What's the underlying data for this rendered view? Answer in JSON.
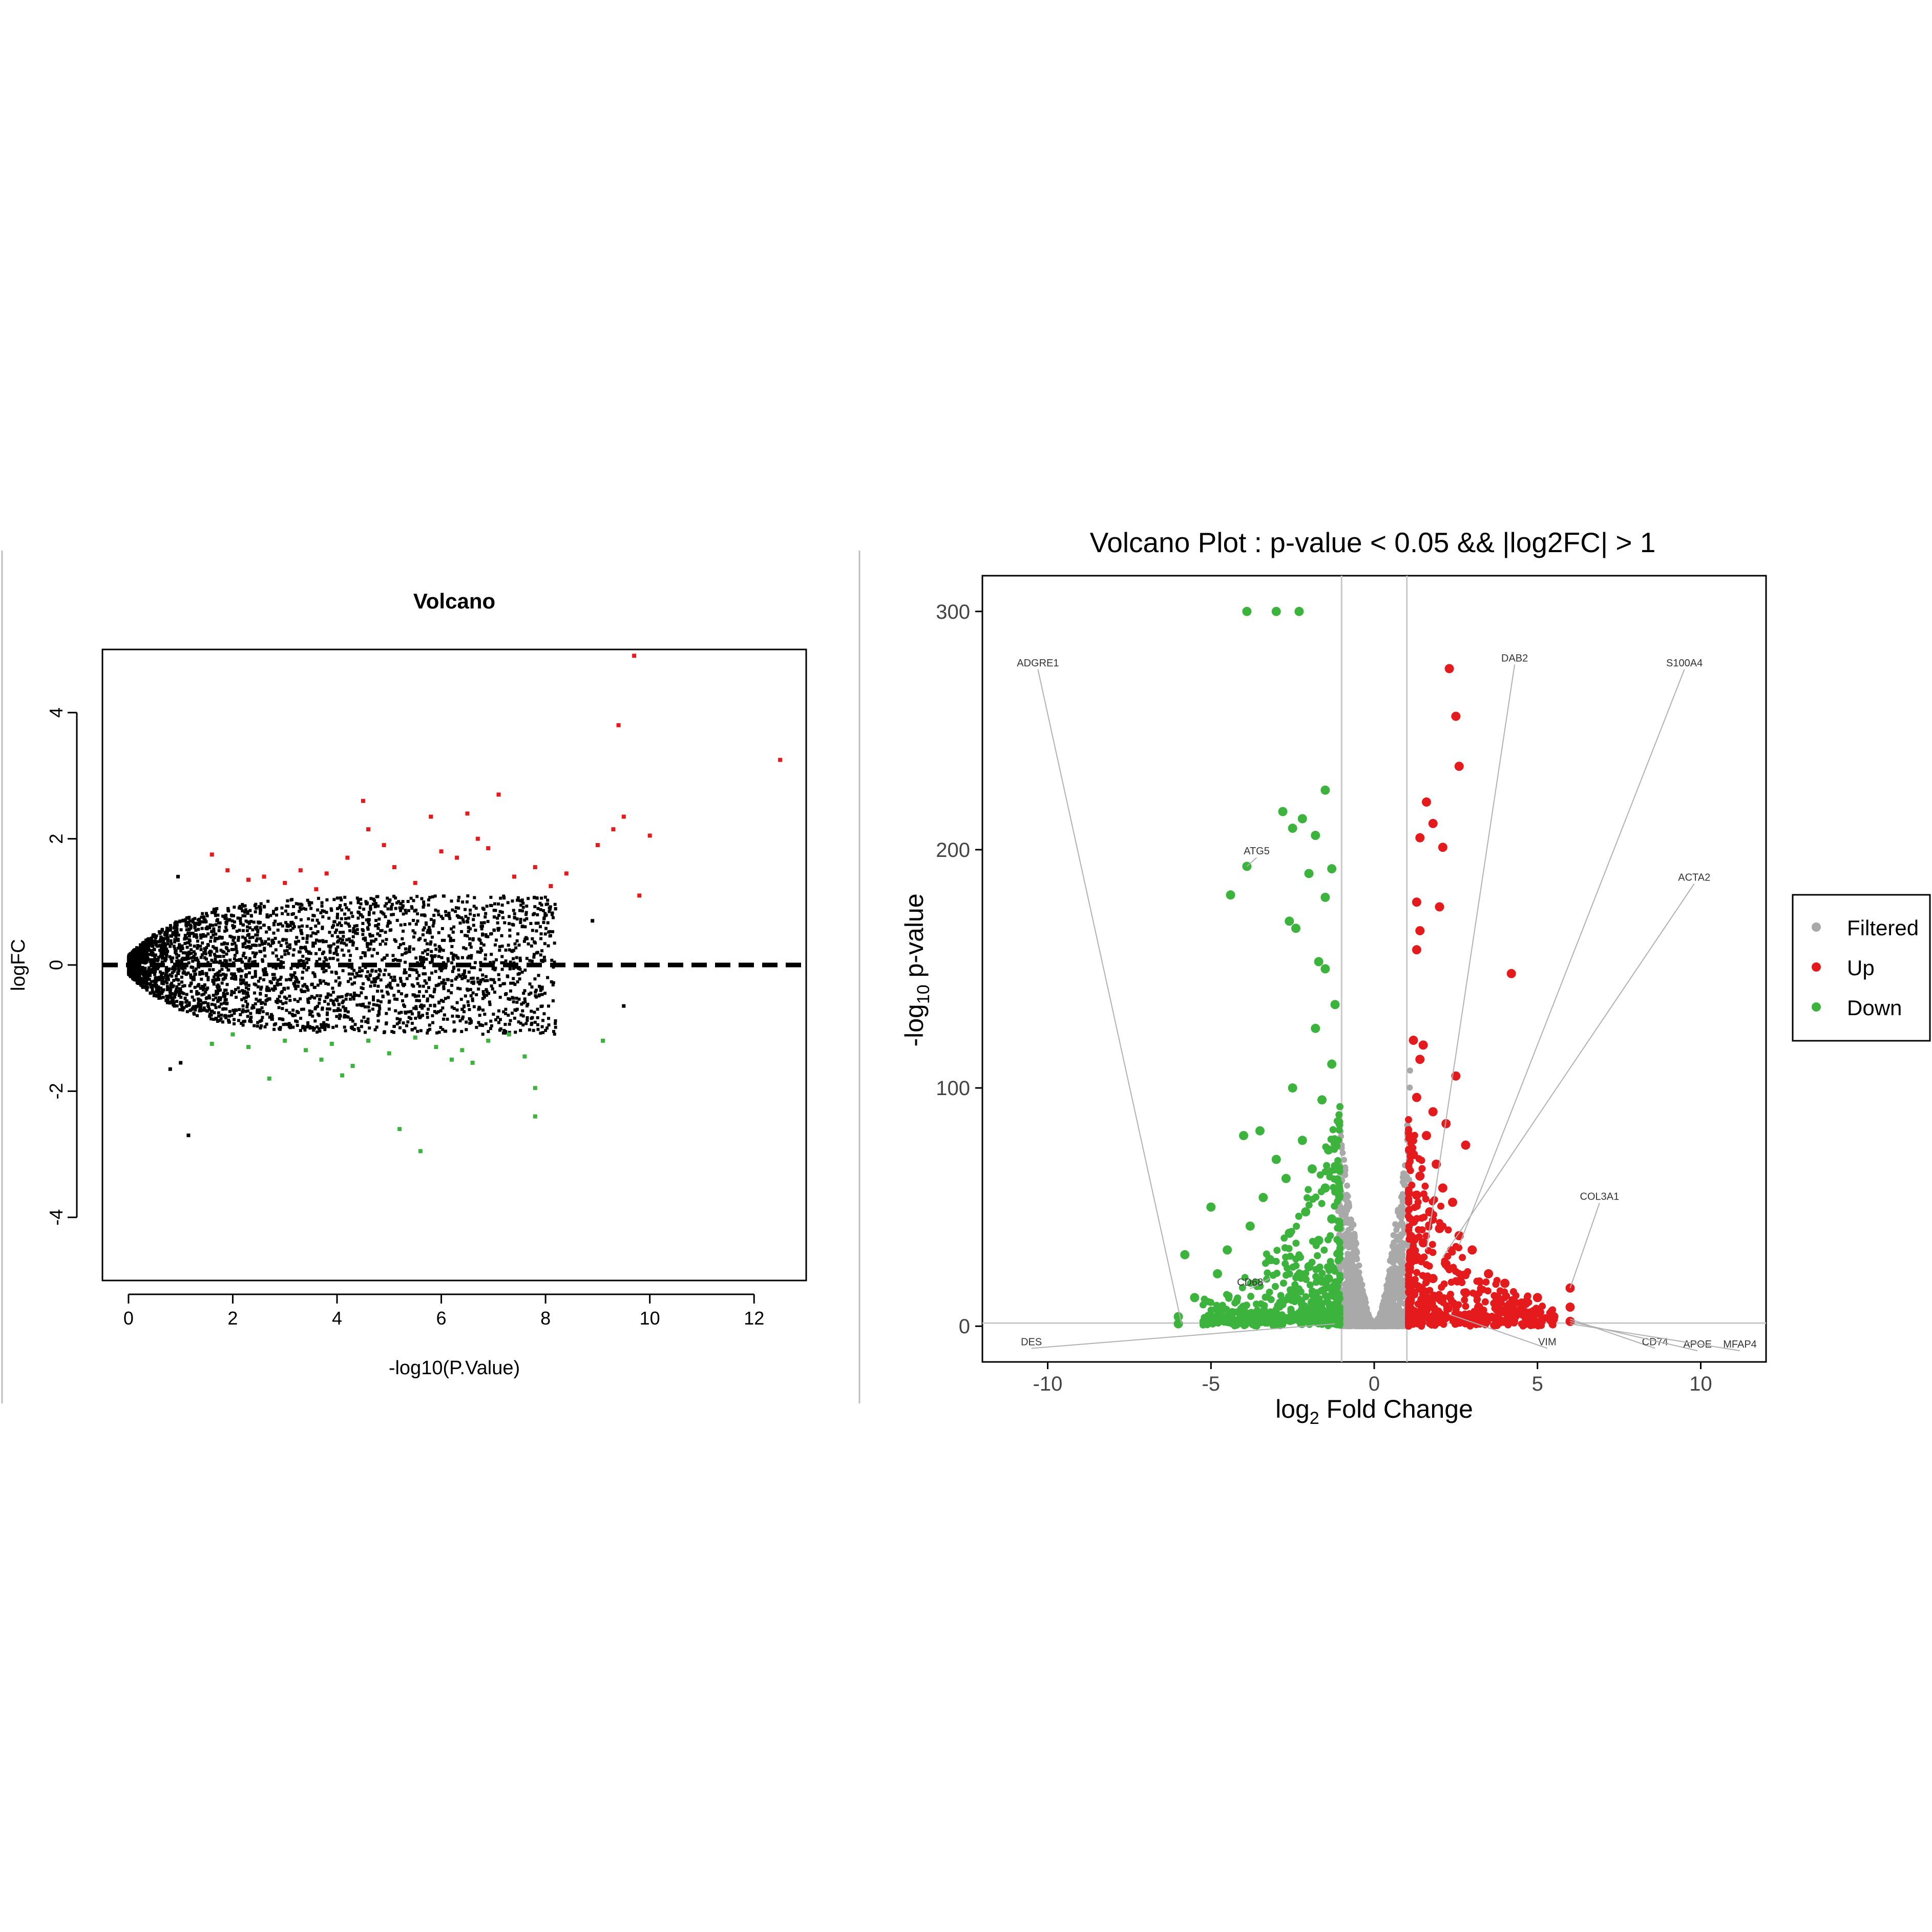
{
  "colors": {
    "black": "#000000",
    "up": "#e41a1c",
    "down": "#3cb33c",
    "filtered": "#a9a9a9",
    "guide_line": "#c8c8c8",
    "panel_divider": "#bdbdbd"
  },
  "chart_data": [
    {
      "type": "scatter",
      "title": "Volcano",
      "xlabel": "-log10(P.Value)",
      "ylabel": "logFC",
      "xlim": [
        -0.5,
        13
      ],
      "ylim": [
        -5,
        5
      ],
      "x_ticks": [
        0,
        2,
        4,
        6,
        8,
        10,
        12
      ],
      "y_ticks": [
        -4,
        -2,
        0,
        2,
        4
      ],
      "grid": false,
      "reference_line": {
        "y": 0,
        "style": "dashed"
      },
      "series": [
        {
          "color_key": "up",
          "points": [
            [
              1.6,
              1.75
            ],
            [
              1.9,
              1.5
            ],
            [
              2.3,
              1.35
            ],
            [
              2.6,
              1.4
            ],
            [
              3.0,
              1.3
            ],
            [
              3.3,
              1.5
            ],
            [
              3.6,
              1.2
            ],
            [
              3.8,
              1.45
            ],
            [
              4.2,
              1.7
            ],
            [
              4.5,
              2.6
            ],
            [
              4.6,
              2.15
            ],
            [
              4.9,
              1.9
            ],
            [
              5.1,
              1.55
            ],
            [
              5.5,
              1.3
            ],
            [
              5.8,
              2.35
            ],
            [
              6.0,
              1.8
            ],
            [
              6.3,
              1.7
            ],
            [
              6.5,
              2.4
            ],
            [
              6.7,
              2.0
            ],
            [
              6.9,
              1.85
            ],
            [
              7.1,
              2.7
            ],
            [
              7.4,
              1.4
            ],
            [
              7.8,
              1.55
            ],
            [
              8.1,
              1.25
            ],
            [
              8.4,
              1.45
            ],
            [
              9.0,
              1.9
            ],
            [
              9.3,
              2.15
            ],
            [
              9.4,
              3.8
            ],
            [
              9.5,
              2.35
            ],
            [
              9.7,
              4.9
            ],
            [
              9.8,
              1.1
            ],
            [
              10.0,
              2.05
            ],
            [
              12.5,
              3.25
            ]
          ]
        },
        {
          "color_key": "down",
          "points": [
            [
              1.6,
              -1.25
            ],
            [
              2.0,
              -1.1
            ],
            [
              2.3,
              -1.3
            ],
            [
              2.7,
              -1.8
            ],
            [
              3.0,
              -1.2
            ],
            [
              3.4,
              -1.35
            ],
            [
              3.7,
              -1.5
            ],
            [
              3.9,
              -1.25
            ],
            [
              4.1,
              -1.75
            ],
            [
              4.3,
              -1.6
            ],
            [
              4.6,
              -1.2
            ],
            [
              5.0,
              -1.4
            ],
            [
              5.2,
              -2.6
            ],
            [
              5.5,
              -1.15
            ],
            [
              5.6,
              -2.95
            ],
            [
              5.9,
              -1.3
            ],
            [
              6.2,
              -1.5
            ],
            [
              6.4,
              -1.35
            ],
            [
              6.6,
              -1.55
            ],
            [
              6.9,
              -1.2
            ],
            [
              7.3,
              -1.1
            ],
            [
              7.6,
              -1.45
            ],
            [
              7.8,
              -1.95
            ],
            [
              7.8,
              -2.4
            ],
            [
              9.1,
              -1.2
            ]
          ]
        }
      ],
      "outliers_nonsignificant": [
        [
          0.95,
          1.4
        ],
        [
          1.0,
          -1.55
        ],
        [
          1.15,
          -2.7
        ],
        [
          0.8,
          -1.65
        ],
        [
          9.5,
          -0.65
        ],
        [
          8.9,
          0.7
        ]
      ]
    },
    {
      "type": "scatter",
      "title": "Volcano Plot : p-value < 0.05 && |log2FC| > 1",
      "xlabel": "log2 Fold Change",
      "ylabel": "-log10 p-value",
      "xlim": [
        -12,
        12
      ],
      "ylim": [
        -15,
        315
      ],
      "x_ticks": [
        -10,
        -5,
        0,
        5,
        10
      ],
      "y_ticks": [
        0,
        100,
        200,
        300
      ],
      "grid": false,
      "reference_lines": {
        "x": [
          -1,
          1
        ],
        "y": [
          1.3
        ]
      },
      "legend": {
        "position": "right",
        "entries": [
          {
            "label": "Filtered",
            "color_key": "filtered"
          },
          {
            "label": "Up",
            "color_key": "up"
          },
          {
            "label": "Down",
            "color_key": "down"
          }
        ]
      },
      "series": [
        {
          "name": "Up",
          "color_key": "up",
          "points": [
            [
              2.3,
              276
            ],
            [
              2.5,
              256
            ],
            [
              2.6,
              235
            ],
            [
              1.6,
              220
            ],
            [
              1.8,
              211
            ],
            [
              1.4,
              205
            ],
            [
              2.1,
              201
            ],
            [
              1.3,
              178
            ],
            [
              2.0,
              176
            ],
            [
              1.4,
              166
            ],
            [
              1.3,
              158
            ],
            [
              4.2,
              148
            ],
            [
              1.2,
              120
            ],
            [
              1.5,
              118
            ],
            [
              1.4,
              112
            ],
            [
              2.5,
              105
            ],
            [
              1.3,
              96
            ],
            [
              1.8,
              90
            ],
            [
              2.2,
              85
            ],
            [
              1.6,
              80
            ],
            [
              2.8,
              76
            ],
            [
              1.2,
              72
            ],
            [
              1.9,
              68
            ],
            [
              1.4,
              63
            ],
            [
              2.1,
              58
            ],
            [
              1.3,
              55
            ],
            [
              2.4,
              52
            ],
            [
              1.7,
              48
            ],
            [
              1.2,
              44
            ],
            [
              2.0,
              41
            ],
            [
              2.6,
              38
            ],
            [
              1.5,
              35
            ],
            [
              3.0,
              32
            ],
            [
              1.3,
              29
            ],
            [
              2.2,
              26
            ],
            [
              3.5,
              22
            ],
            [
              1.8,
              20
            ],
            [
              4.0,
              18
            ],
            [
              1.4,
              16
            ],
            [
              2.8,
              14
            ],
            [
              5.0,
              12
            ],
            [
              1.6,
              10
            ],
            [
              3.2,
              8
            ],
            [
              4.5,
              7
            ],
            [
              6.0,
              16
            ],
            [
              6.0,
              8
            ],
            [
              5.5,
              4
            ],
            [
              1.2,
              4
            ],
            [
              2.0,
              3
            ],
            [
              3.0,
              2
            ],
            [
              4.0,
              2
            ],
            [
              6.0,
              2
            ],
            [
              1.5,
              6
            ],
            [
              2.5,
              5
            ]
          ]
        },
        {
          "name": "Down",
          "color_key": "down",
          "points": [
            [
              -3.9,
              300
            ],
            [
              -3.0,
              300
            ],
            [
              -2.3,
              300
            ],
            [
              -1.5,
              225
            ],
            [
              -2.8,
              216
            ],
            [
              -2.2,
              213
            ],
            [
              -2.5,
              209
            ],
            [
              -1.8,
              206
            ],
            [
              -1.3,
              192
            ],
            [
              -2.0,
              190
            ],
            [
              -4.4,
              181
            ],
            [
              -3.9,
              193
            ],
            [
              -1.5,
              180
            ],
            [
              -2.6,
              170
            ],
            [
              -2.4,
              167
            ],
            [
              -1.7,
              153
            ],
            [
              -1.5,
              150
            ],
            [
              -1.2,
              135
            ],
            [
              -1.8,
              125
            ],
            [
              -1.3,
              110
            ],
            [
              -2.5,
              100
            ],
            [
              -1.6,
              95
            ],
            [
              -3.5,
              82
            ],
            [
              -4.0,
              80
            ],
            [
              -2.2,
              78
            ],
            [
              -1.4,
              74
            ],
            [
              -3.0,
              70
            ],
            [
              -1.9,
              66
            ],
            [
              -2.7,
              62
            ],
            [
              -1.5,
              58
            ],
            [
              -3.4,
              54
            ],
            [
              -5.0,
              50
            ],
            [
              -2.1,
              48
            ],
            [
              -1.3,
              45
            ],
            [
              -3.8,
              42
            ],
            [
              -2.6,
              39
            ],
            [
              -1.7,
              36
            ],
            [
              -4.5,
              32
            ],
            [
              -5.8,
              30
            ],
            [
              -3.2,
              28
            ],
            [
              -2.0,
              25
            ],
            [
              -4.8,
              22
            ],
            [
              -1.4,
              20
            ],
            [
              -3.6,
              18
            ],
            [
              -2.4,
              15
            ],
            [
              -5.5,
              12
            ],
            [
              -1.9,
              10
            ],
            [
              -4.0,
              8
            ],
            [
              -6.0,
              4
            ],
            [
              -6.0,
              1
            ],
            [
              -3.0,
              5
            ],
            [
              -2.0,
              3
            ],
            [
              -1.2,
              2
            ],
            [
              -4.5,
              2
            ]
          ]
        },
        {
          "name": "Filtered",
          "color_key": "filtered",
          "envelope_points": [
            [
              -1.1,
              90
            ],
            [
              -1.0,
              85
            ],
            [
              -0.9,
              70
            ],
            [
              -0.8,
              55
            ],
            [
              -0.6,
              40
            ],
            [
              -0.4,
              20
            ],
            [
              -0.2,
              6
            ],
            [
              0,
              0
            ],
            [
              0.2,
              6
            ],
            [
              0.4,
              20
            ],
            [
              0.6,
              40
            ],
            [
              0.8,
              55
            ],
            [
              0.9,
              70
            ],
            [
              1.0,
              85
            ],
            [
              1.1,
              110
            ]
          ]
        }
      ],
      "annotations": [
        {
          "label": "ADGRE1",
          "point": [
            -5.9,
            1
          ],
          "label_at": [
            -10.3,
            277
          ]
        },
        {
          "label": "ATG5",
          "point": [
            -3.9,
            193
          ],
          "label_at": [
            -3.6,
            198
          ]
        },
        {
          "label": "CD68",
          "point": [
            -3.2,
            20
          ],
          "label_at": [
            -3.8,
            17
          ]
        },
        {
          "label": "DES",
          "point": [
            -1.2,
            1
          ],
          "label_at": [
            -10.5,
            -8
          ]
        },
        {
          "label": "DAB2",
          "point": [
            1.6,
            32
          ],
          "label_at": [
            4.3,
            279
          ]
        },
        {
          "label": "S100A4",
          "point": [
            2.6,
            34
          ],
          "label_at": [
            9.5,
            277
          ]
        },
        {
          "label": "ACTA2",
          "point": [
            2.1,
            29
          ],
          "label_at": [
            9.8,
            187
          ]
        },
        {
          "label": "COL3A1",
          "point": [
            6.0,
            16
          ],
          "label_at": [
            6.9,
            53
          ]
        },
        {
          "label": "VIM",
          "point": [
            2.3,
            5
          ],
          "label_at": [
            5.3,
            -8
          ]
        },
        {
          "label": "CD74",
          "point": [
            6.0,
            3
          ],
          "label_at": [
            8.6,
            -8
          ]
        },
        {
          "label": "APOE",
          "point": [
            6.0,
            2
          ],
          "label_at": [
            9.9,
            -9
          ]
        },
        {
          "label": "MFAP4",
          "point": [
            6.0,
            1
          ],
          "label_at": [
            11.2,
            -9
          ]
        }
      ]
    }
  ]
}
